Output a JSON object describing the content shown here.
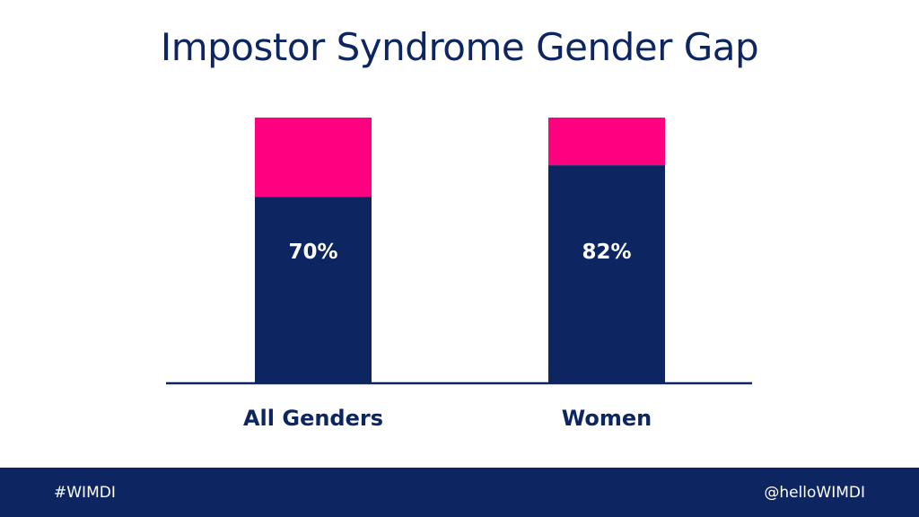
{
  "slide": {
    "title": "Impostor Syndrome Gender Gap",
    "footer_left": "#WIMDI",
    "footer_right": "@helloWIMDI"
  },
  "colors": {
    "navy": "#0d2561",
    "pink": "#ff0080",
    "white": "#ffffff"
  },
  "chart_data": {
    "type": "bar",
    "stacked": true,
    "categories": [
      "All Genders",
      "Women"
    ],
    "series": [
      {
        "values": [
          70,
          82
        ],
        "color": "#0d2561",
        "labels": [
          "70%",
          "82%"
        ]
      },
      {
        "values": [
          30,
          18
        ],
        "color": "#ff0080"
      }
    ],
    "ylim": [
      0,
      100
    ],
    "grid": false,
    "legend": "none"
  }
}
